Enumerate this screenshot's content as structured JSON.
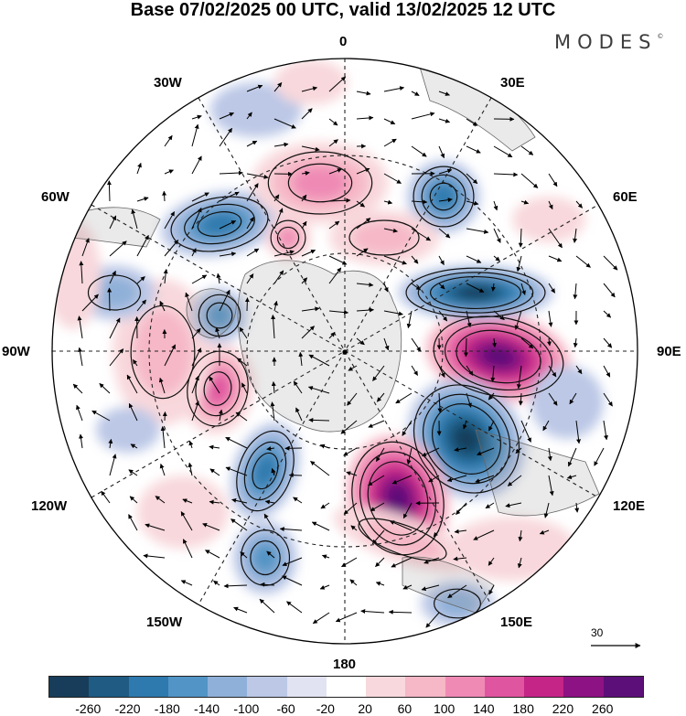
{
  "title": "Base 07/02/2025 00 UTC, valid 13/02/2025 12 UTC",
  "brand": "MODES",
  "brand_mark": "©",
  "longitude_labels": {
    "north": "0",
    "ne": "30E",
    "ene": "60E",
    "east": "90E",
    "ese": "120E",
    "se": "150E",
    "south": "180",
    "sw": "150W",
    "wsw": "120W",
    "west": "90W",
    "wnw": "60W",
    "nw": "30W"
  },
  "reference_vector": "30",
  "colorbar": {
    "colors": [
      "#173d5a",
      "#1f5b83",
      "#2e79ad",
      "#5294c5",
      "#8fb0d8",
      "#bcc8e6",
      "#e2e3f2",
      "#ffffff",
      "#f8d8dc",
      "#f6b7c6",
      "#ef8ab5",
      "#e0559f",
      "#c42587",
      "#8d1283",
      "#5c0f78"
    ],
    "labels": [
      "-260",
      "-220",
      "-180",
      "-140",
      "-100",
      "-60",
      "-20",
      "20",
      "60",
      "100",
      "140",
      "180",
      "220",
      "260"
    ]
  }
}
